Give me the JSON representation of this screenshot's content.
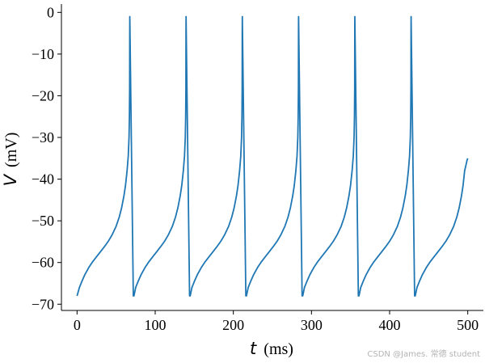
{
  "chart_data": {
    "type": "line",
    "xlabel": {
      "symbol": "t",
      "unit": "(ms)"
    },
    "ylabel": {
      "symbol": "V",
      "unit": "(mV)"
    },
    "xlim": [
      -20,
      520
    ],
    "ylim": [
      -71.5,
      2
    ],
    "xticks": [
      0,
      100,
      200,
      300,
      400,
      500
    ],
    "yticks": [
      0,
      -10,
      -20,
      -30,
      -40,
      -50,
      -60,
      -70
    ],
    "grid": false,
    "series": [
      {
        "color": "#1f77b4",
        "x": [
          0,
          3,
          6,
          10,
          15,
          20,
          25,
          30,
          35,
          40,
          45,
          50,
          54,
          57,
          60,
          62,
          64,
          65.5,
          66.5,
          67,
          67.3,
          67.4,
          67.5,
          72,
          72.8,
          75,
          78,
          82,
          87,
          92,
          97,
          102,
          107,
          112,
          117,
          122,
          126,
          129,
          132,
          134,
          136,
          137.5,
          138.5,
          139,
          139.3,
          139.4,
          139.5,
          144,
          144.8,
          147,
          150,
          154,
          159,
          164,
          169,
          174,
          179,
          184,
          189,
          194,
          198,
          201,
          204,
          206,
          208,
          209.5,
          210.5,
          211,
          211.3,
          211.4,
          211.5,
          216,
          216.8,
          219,
          222,
          226,
          231,
          236,
          241,
          246,
          251,
          256,
          261,
          266,
          270,
          273,
          276,
          278,
          280,
          281.5,
          282.5,
          283,
          283.3,
          283.4,
          283.5,
          288,
          288.8,
          291,
          294,
          298,
          303,
          308,
          313,
          318,
          323,
          328,
          333,
          338,
          342,
          345,
          348,
          350,
          352,
          353.5,
          354.5,
          355,
          355.3,
          355.4,
          355.5,
          360,
          360.8,
          363,
          366,
          370,
          375,
          380,
          385,
          390,
          395,
          400,
          405,
          410,
          414,
          417,
          420,
          422,
          424,
          425.5,
          426.5,
          427,
          427.3,
          427.4,
          427.5,
          432,
          432.8,
          435,
          438,
          442,
          447,
          452,
          457,
          462,
          467,
          472,
          477,
          482,
          486,
          489,
          492,
          494,
          496,
          497.5,
          498.5,
          499,
          500
        ],
        "y": [
          -68,
          -66,
          -64.6,
          -62.9,
          -61.2,
          -59.8,
          -58.6,
          -57.4,
          -56.2,
          -54.9,
          -53.3,
          -51.3,
          -49.1,
          -46.9,
          -44,
          -41.5,
          -38,
          -34.5,
          -30,
          -25,
          -18,
          -5,
          -1,
          -68,
          -68,
          -66,
          -64.6,
          -62.9,
          -61.2,
          -59.8,
          -58.6,
          -57.4,
          -56.2,
          -54.9,
          -53.3,
          -51.3,
          -49.1,
          -46.9,
          -44,
          -41.5,
          -38,
          -34.5,
          -30,
          -25,
          -18,
          -5,
          -1,
          -68,
          -68,
          -66,
          -64.6,
          -62.9,
          -61.2,
          -59.8,
          -58.6,
          -57.4,
          -56.2,
          -54.9,
          -53.3,
          -51.3,
          -49.1,
          -46.9,
          -44,
          -41.5,
          -38,
          -34.5,
          -30,
          -25,
          -18,
          -5,
          -1,
          -68,
          -68,
          -66,
          -64.6,
          -62.9,
          -61.2,
          -59.8,
          -58.6,
          -57.4,
          -56.2,
          -54.9,
          -53.3,
          -51.3,
          -49.1,
          -46.9,
          -44,
          -41.5,
          -38,
          -34.5,
          -30,
          -25,
          -18,
          -5,
          -1,
          -68,
          -68,
          -66,
          -64.6,
          -62.9,
          -61.2,
          -59.8,
          -58.6,
          -57.4,
          -56.2,
          -54.9,
          -53.3,
          -51.3,
          -49.1,
          -46.9,
          -44,
          -41.5,
          -38,
          -34.5,
          -30,
          -25,
          -18,
          -5,
          -1,
          -68,
          -68,
          -66,
          -64.6,
          -62.9,
          -61.2,
          -59.8,
          -58.6,
          -57.4,
          -56.2,
          -54.9,
          -53.3,
          -51.3,
          -49.1,
          -46.9,
          -44,
          -41.5,
          -38,
          -34.5,
          -30,
          -25,
          -18,
          -5,
          -1,
          -68,
          -68,
          -66,
          -64.6,
          -62.9,
          -61.2,
          -59.8,
          -58.6,
          -57.4,
          -56.2,
          -54.9,
          -53.3,
          -51.3,
          -49.1,
          -46.9,
          -44,
          -41.5,
          -38,
          -36.8,
          -36,
          -35.5,
          -35
        ]
      }
    ]
  },
  "watermark": "CSDN @James. 常德 student"
}
